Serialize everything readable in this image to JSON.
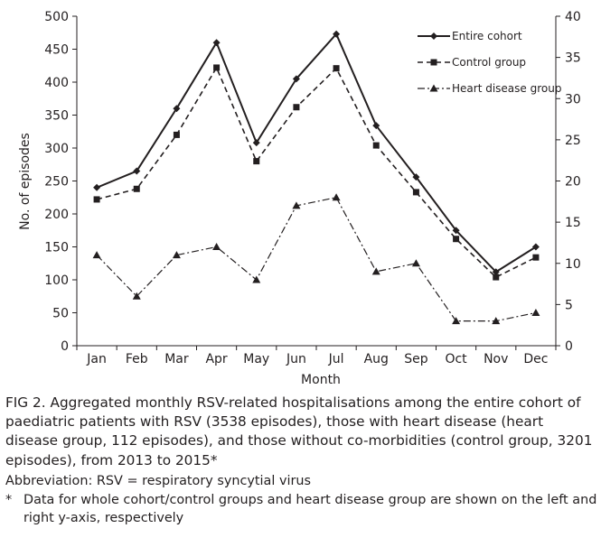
{
  "chart_data": {
    "type": "line",
    "categories": [
      "Jan",
      "Feb",
      "Mar",
      "Apr",
      "May",
      "Jun",
      "Jul",
      "Aug",
      "Sep",
      "Oct",
      "Nov",
      "Dec"
    ],
    "xlabel": "Month",
    "ylabel": "No. of episodes",
    "ylim": [
      0,
      500
    ],
    "yticks": [
      0,
      50,
      100,
      150,
      200,
      250,
      300,
      350,
      400,
      450,
      500
    ],
    "y2lim": [
      0,
      40
    ],
    "y2ticks": [
      0,
      5,
      10,
      15,
      20,
      25,
      30,
      35,
      40
    ],
    "grid": false,
    "legend_position": "top-right",
    "series": [
      {
        "name": "Entire cohort",
        "axis": "left",
        "marker": "diamond",
        "line": "solid",
        "values": [
          240,
          265,
          360,
          460,
          308,
          405,
          473,
          334,
          256,
          175,
          112,
          150
        ]
      },
      {
        "name": "Control group",
        "axis": "left",
        "marker": "square",
        "line": "dashed",
        "values": [
          222,
          238,
          320,
          422,
          280,
          362,
          421,
          304,
          233,
          162,
          104,
          134
        ]
      },
      {
        "name": "Heart disease group",
        "axis": "right",
        "marker": "triangle",
        "line": "dashdot",
        "values": [
          11,
          6,
          11,
          12,
          8,
          17,
          18,
          9,
          10,
          3,
          3,
          4
        ]
      }
    ]
  },
  "caption": {
    "figure": "FIG 2. Aggregated monthly RSV-related hospitalisations among the entire cohort of paediatric patients with RSV (3538 episodes), those with heart disease (heart disease group, 112 episodes), and those without co-morbidities (control group, 3201 episodes), from 2013 to 2015*",
    "abbreviation": "Abbreviation: RSV = respiratory syncytial virus",
    "footnote_marker": "*",
    "footnote": "Data for whole cohort/control groups and heart disease group are shown on the left and right y-axis, respectively"
  }
}
